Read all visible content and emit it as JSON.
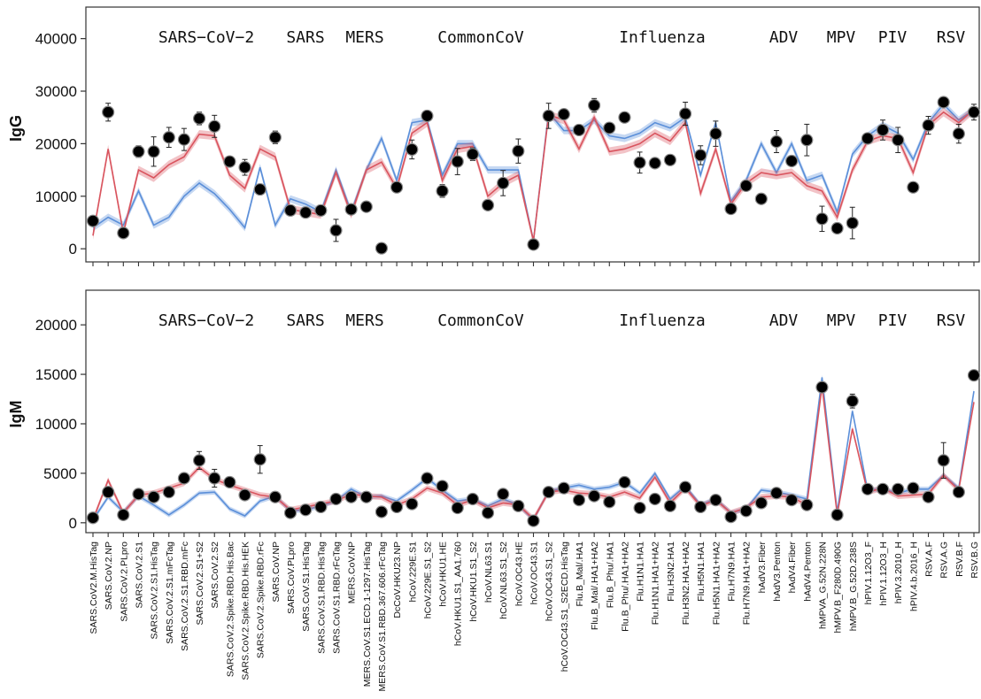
{
  "chart_data": [
    {
      "type": "line",
      "ylabel": "IgG",
      "ylim": [
        -2500,
        46000
      ],
      "yticks": [
        0,
        10000,
        20000,
        30000,
        40000
      ],
      "x": [
        "SARS.CoV2.M.HisTag",
        "SARS.CoV.2.NP",
        "SARS.CoV.2.PLpro",
        "SARS.CoV.2.S1",
        "SARS.CoV.2.S1.HisTag",
        "SARS.CoV.2.S1.mFcTag",
        "SARS.CoV.2.S1.RBD.mFc",
        "SARS.CoV.2.S1+S2",
        "SARS.CoV.2.S2",
        "SARS.CoV.2.Spike.RBD.His.Bac",
        "SARS.CoV.2.Spike.RBD.His.HEK",
        "SARS.CoV.2.Spike.RBD.rFc",
        "SARS.CoV.NP",
        "SARS.CoV.PLpro",
        "SARS.CoV.S1.HisTag",
        "SARS.CoV.S1.RBD.HisTag",
        "SARS.CoV.S1.RBD.rFcTag",
        "MERS.CoV.NP",
        "MERS.CoV.S1.ECD.1-1297.HisTag",
        "MERS.CoV.S1.RBD.367.606.rFcTag",
        "DcCoV.HKU23.NP",
        "hCoV.229E.S1",
        "hCoV.229E.S1_S2",
        "hCoV.HKU1.HE",
        "hCoV.HKU1.S1_AA1.760",
        "hCoV.HKU1.S1_S2",
        "hCoV.NL63.S1",
        "hCoV.NL63.S1_S2",
        "hCoV.OC43.HE",
        "hCoV.OC43.S1",
        "hCoV.OC43.S1_S2",
        "hCoV.OC43.S1_S2ECD.HisTag",
        "Flu.B_Mal/.HA1",
        "Flu.B_Mal/.HA1+HA2",
        "Flu.B_Phu/.HA1",
        "Flu.B_Phu/.HA1+HA2",
        "Flu.H1N1.HA1",
        "Flu.H1N1.HA1+HA2",
        "Flu.H3N2.HA1",
        "Flu.H3N2.HA1+HA2",
        "Flu.H5N1.HA1",
        "Flu.H5N1.HA1+HA2",
        "Flu.H7N9.HA1",
        "Flu.H7N9.HA1+HA2",
        "hAdV3.Fiber",
        "hAdV3.Penton",
        "hAdV4.Fiber",
        "hAdV4.Penton",
        "hMPVA_G.52N.228N",
        "hMPV.B_F280D.490G",
        "hMPV.B_G.52D.238S",
        "hPIV.1.12O3_F",
        "hPIV.1.12O3_H",
        "hPIV.3.2010_H",
        "hPIV.4.b.2016_H",
        "RSV.A.F",
        "RSV.A.G",
        "RSV.B.F",
        "RSV.B.G"
      ],
      "groups": [
        "SARS−CoV−2",
        "SARS",
        "MERS",
        "CommonCoV",
        "Influenza",
        "ADV",
        "MPV",
        "PIV",
        "RSV"
      ],
      "series": [
        {
          "kind": "points",
          "color": "#000000",
          "values": [
            5300,
            26000,
            3000,
            18500,
            18500,
            21200,
            20800,
            24800,
            23300,
            16600,
            15500,
            11300,
            21200,
            7300,
            6900,
            7300,
            3500,
            7500,
            8000,
            100,
            11700,
            18900,
            25300,
            11000,
            16600,
            18000,
            8300,
            12500,
            18600,
            800,
            25300,
            25600,
            22600,
            27300,
            23000,
            25000,
            16400,
            16300,
            16900,
            25700,
            17800,
            21900,
            7600,
            12000,
            9500,
            20400,
            16700,
            20700,
            5700,
            3900,
            4900,
            21000,
            22600,
            20700,
            11700,
            23500,
            27900,
            21900,
            26000
          ],
          "errors": [
            0,
            1700,
            0,
            1100,
            2800,
            1900,
            2100,
            1200,
            2100,
            0,
            1500,
            0,
            1200,
            0,
            0,
            0,
            2100,
            0,
            0,
            0,
            0,
            1800,
            0,
            1200,
            2500,
            1200,
            0,
            2400,
            2300,
            0,
            2400,
            0,
            0,
            1300,
            0,
            0,
            2000,
            0,
            0,
            2200,
            1800,
            2400,
            0,
            0,
            0,
            2100,
            0,
            3000,
            2400,
            0,
            3000,
            0,
            1900,
            2400,
            0,
            1700,
            0,
            1800,
            1500
          ]
        },
        {
          "kind": "band",
          "color": "#d9545e",
          "values": [
            2500,
            19000,
            3000,
            15000,
            13500,
            16000,
            17500,
            21800,
            21500,
            14000,
            11500,
            19000,
            17500,
            7500,
            7000,
            6500,
            14500,
            6500,
            15000,
            16500,
            11500,
            22000,
            24000,
            13000,
            19000,
            19500,
            10000,
            12500,
            14000,
            1500,
            25500,
            24500,
            19000,
            25000,
            18500,
            19000,
            20000,
            22000,
            20500,
            24000,
            10500,
            19000,
            8500,
            12500,
            14500,
            14000,
            14500,
            12000,
            11000,
            6000,
            15000,
            20500,
            21500,
            21000,
            14500,
            23500,
            26000,
            24000,
            26500
          ],
          "band": 800
        },
        {
          "kind": "band",
          "color": "#5b8fd9",
          "values": [
            4000,
            6000,
            4500,
            11000,
            4500,
            6000,
            10000,
            12500,
            10500,
            7500,
            4000,
            15500,
            4500,
            9500,
            8500,
            7000,
            15000,
            7000,
            15000,
            21000,
            13000,
            24000,
            24500,
            14000,
            20000,
            20000,
            15000,
            15000,
            15000,
            1500,
            26000,
            22500,
            22500,
            24500,
            21500,
            21000,
            22000,
            24000,
            23000,
            25000,
            14000,
            24000,
            9000,
            13000,
            20000,
            14500,
            20000,
            13000,
            14000,
            7000,
            18000,
            21500,
            23500,
            22000,
            17000,
            24000,
            27500,
            24500,
            26500
          ],
          "band": 700
        }
      ]
    },
    {
      "type": "line",
      "ylabel": "IgM",
      "ylim": [
        -1000,
        23500
      ],
      "yticks": [
        0,
        5000,
        10000,
        15000,
        20000
      ],
      "x": [
        "SARS.CoV2.M.HisTag",
        "SARS.CoV.2.NP",
        "SARS.CoV.2.PLpro",
        "SARS.CoV.2.S1",
        "SARS.CoV.2.S1.HisTag",
        "SARS.CoV.2.S1.mFcTag",
        "SARS.CoV.2.S1.RBD.mFc",
        "SARS.CoV.2.S1+S2",
        "SARS.CoV.2.S2",
        "SARS.CoV.2.Spike.RBD.His.Bac",
        "SARS.CoV.2.Spike.RBD.His.HEK",
        "SARS.CoV.2.Spike.RBD.rFc",
        "SARS.CoV.NP",
        "SARS.CoV.PLpro",
        "SARS.CoV.S1.HisTag",
        "SARS.CoV.S1.RBD.HisTag",
        "SARS.CoV.S1.RBD.rFcTag",
        "MERS.CoV.NP",
        "MERS.CoV.S1.ECD.1-1297.HisTag",
        "MERS.CoV.S1.RBD.367.606.rFcTag",
        "DcCoV.HKU23.NP",
        "hCoV.229E.S1",
        "hCoV.229E.S1_S2",
        "hCoV.HKU1.HE",
        "hCoV.HKU1.S1_AA1.760",
        "hCoV.HKU1.S1_S2",
        "hCoV.NL63.S1",
        "hCoV.NL63.S1_S2",
        "hCoV.OC43.HE",
        "hCoV.OC43.S1",
        "hCoV.OC43.S1_S2",
        "hCoV.OC43.S1_S2ECD.HisTag",
        "Flu.B_Mal/.HA1",
        "Flu.B_Mal/.HA1+HA2",
        "Flu.B_Phu/.HA1",
        "Flu.B_Phu/.HA1+HA2",
        "Flu.H1N1.HA1",
        "Flu.H1N1.HA1+HA2",
        "Flu.H3N2.HA1",
        "Flu.H3N2.HA1+HA2",
        "Flu.H5N1.HA1",
        "Flu.H5N1.HA1+HA2",
        "Flu.H7N9.HA1",
        "Flu.H7N9.HA1+HA2",
        "hAdV3.Fiber",
        "hAdV3.Penton",
        "hAdV4.Fiber",
        "hAdV4.Penton",
        "hMPVA_G.52N.228N",
        "hMPV.B_F280D.490G",
        "hMPV.B_G.52D.238S",
        "hPIV.1.12O3_F",
        "hPIV.1.12O3_H",
        "hPIV.3.2010_H",
        "hPIV.4.b.2016_H",
        "RSV.A.F",
        "RSV.A.G",
        "RSV.B.F",
        "RSV.B.G"
      ],
      "groups": [
        "SARS−CoV−2",
        "SARS",
        "MERS",
        "CommonCoV",
        "Influenza",
        "ADV",
        "MPV",
        "PIV",
        "RSV"
      ],
      "series": [
        {
          "kind": "points",
          "color": "#000000",
          "values": [
            500,
            3100,
            800,
            2900,
            2600,
            3100,
            4500,
            6300,
            4500,
            4100,
            2800,
            6400,
            2600,
            1000,
            1300,
            1600,
            2400,
            2600,
            2600,
            1100,
            1600,
            1900,
            4500,
            3700,
            1500,
            2400,
            1000,
            2900,
            1700,
            200,
            3100,
            3500,
            2300,
            2700,
            2100,
            4100,
            1500,
            2400,
            1700,
            3600,
            1600,
            2300,
            600,
            1200,
            2000,
            3000,
            2300,
            1800,
            13700,
            800,
            12300,
            3400,
            3400,
            3400,
            3500,
            2600,
            6300,
            3100,
            14900
          ],
          "errors": [
            0,
            0,
            0,
            0,
            0,
            0,
            0,
            900,
            900,
            0,
            0,
            1400,
            0,
            0,
            0,
            0,
            0,
            0,
            0,
            0,
            0,
            0,
            0,
            0,
            0,
            0,
            0,
            0,
            0,
            0,
            0,
            0,
            0,
            0,
            0,
            0,
            0,
            0,
            0,
            0,
            0,
            0,
            0,
            0,
            0,
            0,
            0,
            0,
            500,
            0,
            700,
            0,
            0,
            0,
            0,
            0,
            1800,
            0,
            0
          ]
        },
        {
          "kind": "band",
          "color": "#d9545e",
          "values": [
            300,
            4300,
            1000,
            2800,
            3000,
            3500,
            4000,
            5600,
            4400,
            3800,
            3300,
            2800,
            2600,
            1300,
            1600,
            1900,
            2200,
            2900,
            2700,
            2600,
            1800,
            2400,
            3500,
            3000,
            1800,
            2300,
            1500,
            2000,
            1800,
            400,
            3100,
            3300,
            3000,
            2900,
            2600,
            3100,
            2500,
            4600,
            2000,
            3500,
            1700,
            2300,
            1000,
            1500,
            2600,
            2700,
            2600,
            1800,
            13800,
            800,
            9500,
            3100,
            3500,
            2700,
            2800,
            2900,
            4800,
            3300,
            12200
          ],
          "band": 300
        },
        {
          "kind": "band",
          "color": "#5b8fd9",
          "values": [
            300,
            2600,
            1100,
            2700,
            1800,
            800,
            1800,
            3000,
            3100,
            1400,
            700,
            2200,
            2700,
            1200,
            1300,
            1700,
            2200,
            3400,
            2600,
            2700,
            2200,
            3300,
            4500,
            3300,
            2200,
            2400,
            1700,
            2400,
            1800,
            300,
            3200,
            3500,
            3800,
            3400,
            3600,
            4100,
            3000,
            5000,
            2400,
            3700,
            1800,
            2400,
            1000,
            1400,
            3300,
            3100,
            2800,
            2400,
            14700,
            1100,
            11300,
            3300,
            3400,
            3000,
            3400,
            3400,
            4800,
            3500,
            13300
          ],
          "band": 250
        }
      ]
    }
  ]
}
